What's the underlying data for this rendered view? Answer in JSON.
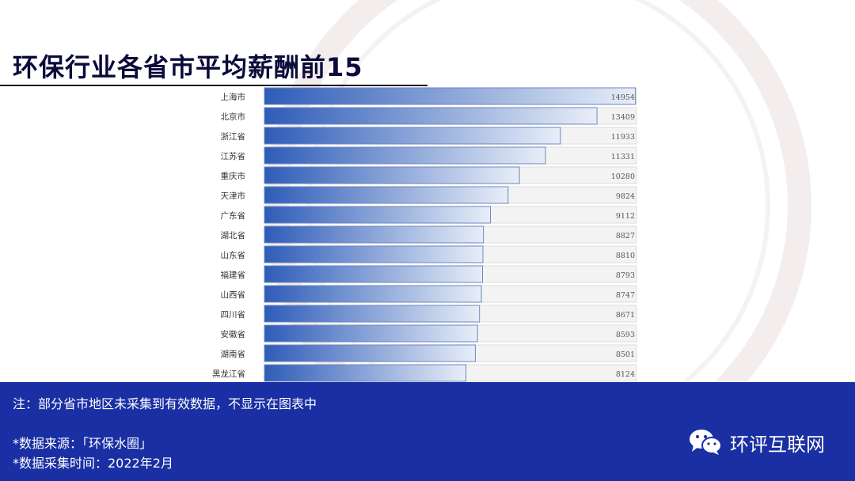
{
  "slide": {
    "title": "环保行业各省市平均薪酬前15"
  },
  "footer": {
    "note": "注：部分省市地区未采集到有效数据，不显示在图表中",
    "source": "*数据来源：「环保水圈」",
    "collection_time": "*数据采集时间：2022年2月",
    "brand": "环评互联网"
  },
  "chart_data": {
    "type": "bar",
    "orientation": "horizontal",
    "categories": [
      "上海市",
      "北京市",
      "浙江省",
      "江苏省",
      "重庆市",
      "天津市",
      "广东省",
      "湖北省",
      "山东省",
      "福建省",
      "山西省",
      "四川省",
      "安徽省",
      "湖南省",
      "黑龙江省"
    ],
    "values": [
      14954,
      13409,
      11933,
      11331,
      10280,
      9824,
      9112,
      8827,
      8810,
      8793,
      8747,
      8671,
      8593,
      8501,
      8124
    ],
    "xlim": [
      0,
      15000
    ],
    "grid": false,
    "data_labels": true
  },
  "colors": {
    "bar_dark": "#2e5cb8",
    "bar_light": "#e8eef8",
    "bar_border": "#6f86bf",
    "footer_bg": "#1a2fa3",
    "title": "#0b0b3b"
  }
}
